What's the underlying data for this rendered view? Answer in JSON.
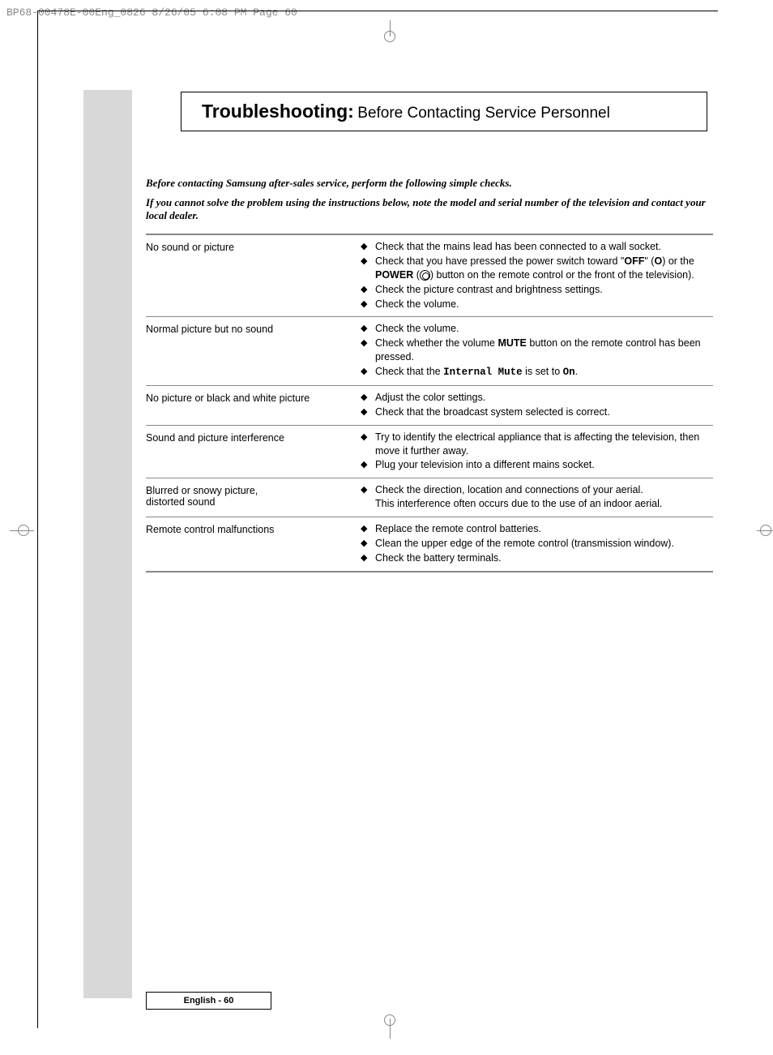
{
  "header_bar": "BP68-00478E-00Eng_0826  8/26/05  6:08 PM  Page 60",
  "title_bold": "Troubleshooting:",
  "title_light": " Before Contacting Service Personnel",
  "intro_1": "Before contacting Samsung after-sales service, perform the following simple checks.",
  "intro_2": "If you cannot solve the problem using the instructions below, note the model and serial number of the television and contact your local dealer.",
  "rows": [
    {
      "label": "No sound or picture",
      "items": [
        "Check that the mains lead has been connected to a wall socket.",
        "__POWER__",
        "Check the picture contrast and brightness settings.",
        "Check the volume."
      ]
    },
    {
      "label": "Normal picture but no sound",
      "items": [
        "Check the volume.",
        "__MUTE__",
        "__INTERNAL__"
      ]
    },
    {
      "label": "No picture or black and white picture",
      "items": [
        "Adjust the color settings.",
        "Check that the broadcast system selected is correct."
      ]
    },
    {
      "label": "Sound and picture interference",
      "items": [
        "Try to identify the electrical appliance that is affecting the television, then move it further away.",
        "Plug your television into a different mains socket."
      ]
    },
    {
      "label": "Blurred or snowy picture,\ndistorted sound",
      "items": [
        "Check the direction, location and connections of your aerial.\nThis interference often occurs due to the use of an indoor aerial."
      ]
    },
    {
      "label": "Remote control malfunctions",
      "items": [
        "Replace the remote control batteries.",
        "Clean the upper edge of the remote control (transmission window).",
        "Check the battery terminals."
      ]
    }
  ],
  "footer": "English - 60",
  "special": {
    "power": "Check that you have pressed the power switch toward \"<b>OFF</b>\" (<b>O</b>) or the <b>POWER</b> (<span class='circled'></span>) button on the remote control or the front of the television).",
    "mute": "Check whether the volume <b>MUTE</b> button on the remote control has been pressed.",
    "internal": "Check that the <span class='mono'>Internal Mute</span> is set to <span class='mono'>On</span>."
  }
}
